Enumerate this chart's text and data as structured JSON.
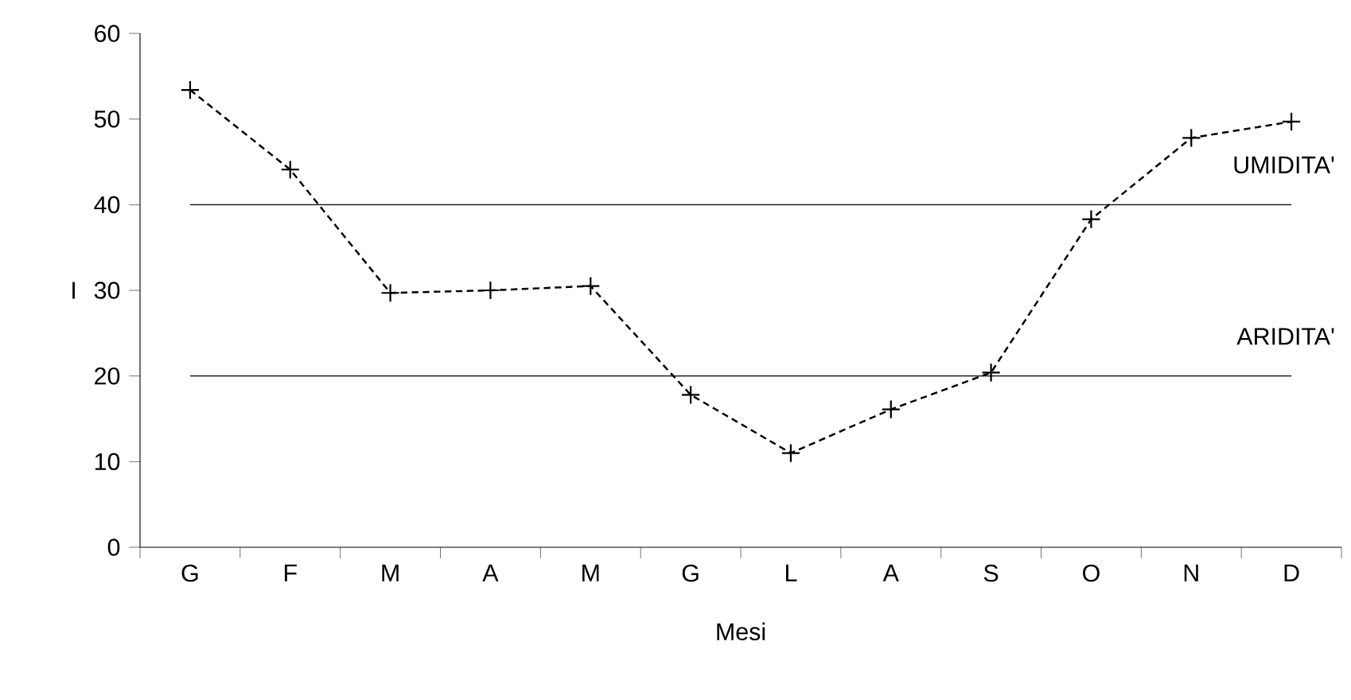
{
  "chart_data": {
    "type": "line",
    "xlabel": "Mesi",
    "ylabel": "I",
    "categories": [
      "G",
      "F",
      "M",
      "A",
      "M",
      "G",
      "L",
      "A",
      "S",
      "O",
      "N",
      "D"
    ],
    "series": [
      {
        "color": "#000000",
        "values": [
          53.4,
          44.1,
          29.7,
          30.0,
          30.5,
          17.8,
          11.0,
          16.1,
          20.4,
          38.3,
          47.8,
          49.7
        ]
      }
    ],
    "ylim": [
      0,
      60
    ],
    "yticks": [
      0,
      10,
      20,
      30,
      40,
      50,
      60
    ],
    "ref_lines": [
      {
        "axis": "y",
        "value": 40,
        "label": "UMIDITA'",
        "color": "#000000"
      },
      {
        "axis": "y",
        "value": 20,
        "label": "ARIDITA'",
        "color": "#000000"
      }
    ],
    "marker": "cross",
    "line_style": "dashed"
  }
}
